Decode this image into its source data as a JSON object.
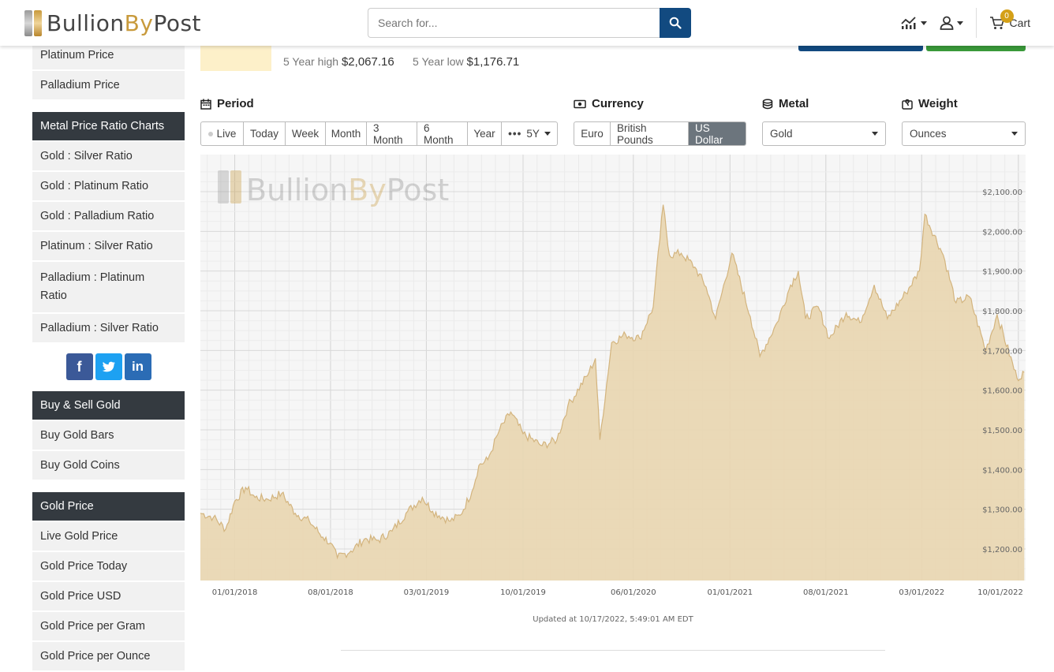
{
  "header": {
    "logo_text_1": "Bullion",
    "logo_text_2": "By",
    "logo_text_3": "Post",
    "search_placeholder": "Search for...",
    "cart_label": "Cart",
    "cart_count": "0"
  },
  "sidebar": {
    "group1": [
      "Platinum Price",
      "Palladium Price"
    ],
    "ratio_head": "Metal Price Ratio Charts",
    "ratio_items": [
      "Gold : Silver Ratio",
      "Gold : Platinum Ratio",
      "Gold : Palladium Ratio",
      "Platinum : Silver Ratio",
      "Palladium : Platinum Ratio",
      "Palladium : Silver Ratio"
    ],
    "buy_head": "Buy & Sell Gold",
    "buy_items": [
      "Buy Gold Bars",
      "Buy Gold Coins"
    ],
    "gold_head": "Gold Price",
    "gold_items": [
      "Live Gold Price",
      "Gold Price Today",
      "Gold Price USD",
      "Gold Price per Gram",
      "Gold Price per Ounce"
    ]
  },
  "summary": {
    "high_label": "5 Year high",
    "high_value": "$2,067.16",
    "low_label": "5 Year low",
    "low_value": "$1,176.71"
  },
  "controls": {
    "period_label": "Period",
    "period_options": [
      "Live",
      "Today",
      "Week",
      "Month",
      "3 Month",
      "6 Month",
      "Year"
    ],
    "period_more": "5Y",
    "currency_label": "Currency",
    "currency_options": [
      "Euro",
      "British Pounds",
      "US Dollar"
    ],
    "currency_active": "US Dollar",
    "metal_label": "Metal",
    "metal_value": "Gold",
    "weight_label": "Weight",
    "weight_value": "Ounces"
  },
  "updated": "Updated at 10/17/2022, 5:49:01 AM EDT",
  "colors": {
    "area_fill": "#e9d6b0",
    "area_line": "#d3b47e",
    "nav_blue": "#124a80",
    "dark_head": "#343a40",
    "gold": "#c89a3c"
  },
  "chart_data": {
    "type": "area",
    "title": "",
    "xlabel": "",
    "ylabel": "",
    "ylim": [
      1150,
      2150
    ],
    "y_ticks": [
      "$1,200.00",
      "$1,300.00",
      "$1,400.00",
      "$1,500.00",
      "$1,600.00",
      "$1,700.00",
      "$1,800.00",
      "$1,900.00",
      "$2,000.00",
      "$2,100.00"
    ],
    "x_ticks": [
      "01/01/2018",
      "08/01/2018",
      "03/01/2019",
      "10/01/2019",
      "06/01/2020",
      "01/01/2021",
      "08/01/2021",
      "03/01/2022",
      "10/01/2022"
    ],
    "series": [
      {
        "x": [
          "2017-10-17",
          "2017-11-15",
          "2017-12-12",
          "2018-01-01",
          "2018-01-25",
          "2018-02-15",
          "2018-03-15",
          "2018-04-15",
          "2018-05-15",
          "2018-06-15",
          "2018-07-15",
          "2018-08-01",
          "2018-08-16",
          "2018-09-15",
          "2018-10-15",
          "2018-11-15",
          "2018-12-15",
          "2019-01-15",
          "2019-02-20",
          "2019-03-15",
          "2019-04-23",
          "2019-05-15",
          "2019-06-10",
          "2019-06-25",
          "2019-07-15",
          "2019-08-10",
          "2019-09-04",
          "2019-10-01",
          "2019-11-12",
          "2019-12-15",
          "2020-01-08",
          "2020-02-24",
          "2020-03-09",
          "2020-03-19",
          "2020-04-14",
          "2020-05-15",
          "2020-06-15",
          "2020-07-15",
          "2020-08-06",
          "2020-08-20",
          "2020-09-15",
          "2020-10-15",
          "2020-11-09",
          "2020-11-30",
          "2021-01-05",
          "2021-02-15",
          "2021-03-08",
          "2021-04-15",
          "2021-05-15",
          "2021-06-01",
          "2021-06-17",
          "2021-07-15",
          "2021-08-09",
          "2021-09-15",
          "2021-10-15",
          "2021-11-16",
          "2021-12-15",
          "2022-01-25",
          "2022-02-24",
          "2022-03-08",
          "2022-04-18",
          "2022-05-16",
          "2022-06-15",
          "2022-07-21",
          "2022-08-15",
          "2022-09-28",
          "2022-10-14"
        ],
        "values": [
          1290,
          1280,
          1250,
          1320,
          1355,
          1330,
          1325,
          1340,
          1290,
          1270,
          1230,
          1215,
          1178,
          1195,
          1225,
          1222,
          1245,
          1290,
          1330,
          1295,
          1270,
          1285,
          1345,
          1410,
          1425,
          1500,
          1545,
          1490,
          1460,
          1475,
          1560,
          1645,
          1680,
          1475,
          1720,
          1740,
          1730,
          1810,
          2067,
          1940,
          1945,
          1910,
          1860,
          1780,
          1945,
          1785,
          1685,
          1770,
          1865,
          1900,
          1780,
          1810,
          1730,
          1795,
          1770,
          1865,
          1780,
          1845,
          1900,
          2043,
          1940,
          1820,
          1835,
          1700,
          1790,
          1630,
          1645
        ]
      }
    ]
  }
}
